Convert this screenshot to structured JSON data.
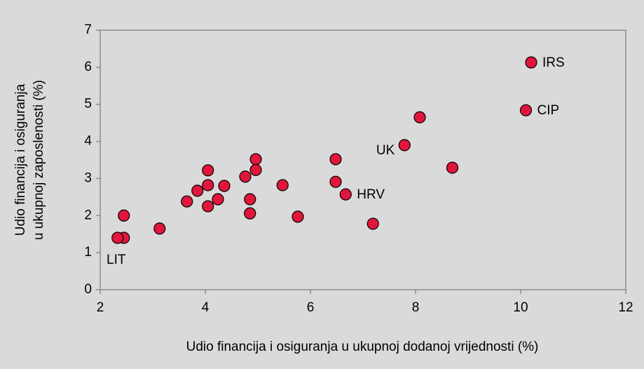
{
  "chart_data": {
    "type": "scatter",
    "x_label": "Udio financija i osiguranja u ukupnoj dodanoj vrijednosti (%)",
    "y_label": [
      "Udio financija i osiguranja",
      "u ukupnoj zaposlenosti (%)"
    ],
    "x": [
      10.2,
      10.1,
      8.08,
      7.79,
      8.7,
      6.48,
      6.48,
      6.67,
      7.19,
      5.76,
      5.47,
      4.96,
      4.96,
      4.76,
      4.85,
      4.85,
      4.36,
      4.24,
      4.05,
      4.05,
      4.05,
      3.85,
      3.65,
      3.13,
      2.45,
      2.45,
      2.33
    ],
    "values": [
      6.13,
      4.84,
      4.65,
      3.9,
      3.29,
      3.52,
      2.91,
      2.57,
      1.78,
      1.97,
      2.82,
      3.52,
      3.23,
      3.05,
      2.44,
      2.06,
      2.8,
      2.44,
      3.22,
      2.82,
      2.25,
      2.67,
      2.38,
      1.65,
      2.0,
      1.4,
      1.4
    ],
    "point_labels": [
      "IRS",
      "CIP",
      null,
      "UK",
      null,
      null,
      null,
      "HRV",
      null,
      null,
      null,
      null,
      null,
      null,
      null,
      null,
      null,
      null,
      null,
      null,
      null,
      null,
      null,
      null,
      null,
      null,
      "LIT"
    ],
    "color": "#e0163d",
    "xlim": [
      2,
      12
    ],
    "xticks": [
      2,
      4,
      6,
      8,
      10,
      12
    ],
    "ylim": [
      0,
      7
    ],
    "yticks": [
      0,
      1,
      2,
      3,
      4,
      5,
      6,
      7
    ],
    "grid": false
  }
}
